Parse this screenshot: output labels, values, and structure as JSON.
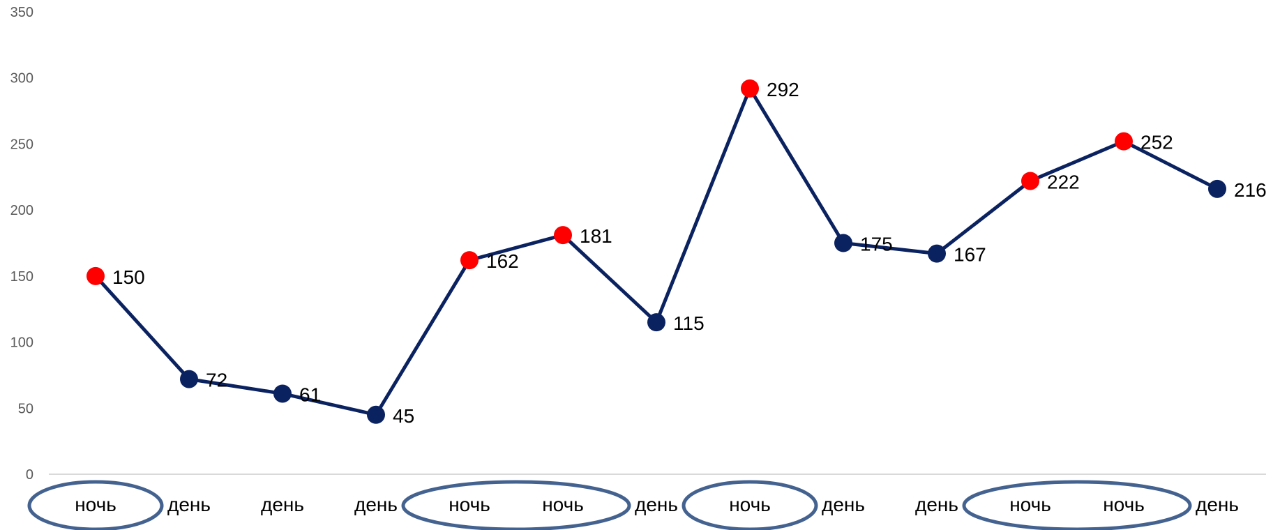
{
  "chart_data": {
    "type": "line",
    "categories": [
      "ночь",
      "день",
      "день",
      "день",
      "ночь",
      "ночь",
      "день",
      "ночь",
      "день",
      "день",
      "ночь",
      "ночь",
      "день"
    ],
    "series": [
      {
        "values": [
          150,
          72,
          61,
          45,
          162,
          181,
          115,
          292,
          175,
          167,
          222,
          252,
          216
        ]
      }
    ],
    "data_labels": [
      "150",
      "72",
      "61",
      "45",
      "162",
      "181",
      "115",
      "292",
      "175",
      "167",
      "222",
      "252",
      "216"
    ],
    "ylim": [
      0,
      350
    ],
    "yticks": [
      0,
      50,
      100,
      150,
      200,
      250,
      300,
      350
    ],
    "title": "",
    "xlabel": "",
    "ylabel": "",
    "grid": false,
    "legend": "none",
    "highlight_category": "ночь",
    "circled_groups": [
      [
        0,
        0
      ],
      [
        4,
        5
      ],
      [
        7,
        7
      ],
      [
        10,
        11
      ]
    ],
    "colors": {
      "line": "#0b2260",
      "marker_default": "#0b2260",
      "marker_highlight": "#ff0000",
      "axis": "#d9d9d9",
      "ellipse": "#44628f"
    }
  }
}
